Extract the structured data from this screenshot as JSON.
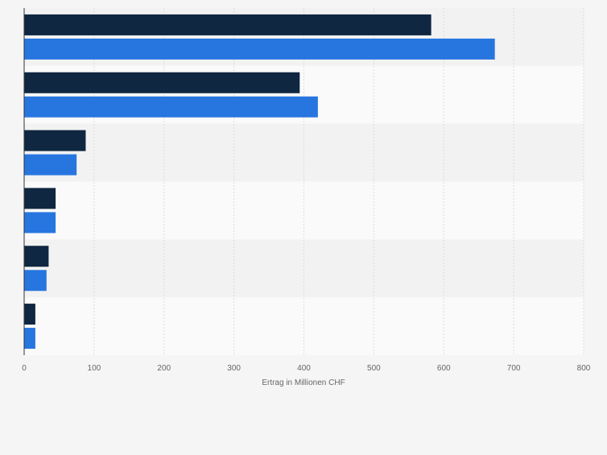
{
  "chart_data": {
    "type": "bar",
    "orientation": "horizontal",
    "categories": [
      "",
      "",
      "",
      "",
      "",
      ""
    ],
    "series": [
      {
        "color": "#0f2741",
        "values": [
          582,
          394,
          88,
          45,
          35,
          16
        ]
      },
      {
        "color": "#2776e0",
        "values": [
          673,
          420,
          75,
          45,
          32,
          16
        ]
      }
    ],
    "title": "",
    "xlabel": "Ertrag in Millionen CHF",
    "ylabel": "",
    "xlim": [
      0,
      800
    ],
    "xticks": [
      0,
      100,
      200,
      300,
      400,
      500,
      600,
      700,
      800
    ],
    "grid": true,
    "legend": "none"
  }
}
